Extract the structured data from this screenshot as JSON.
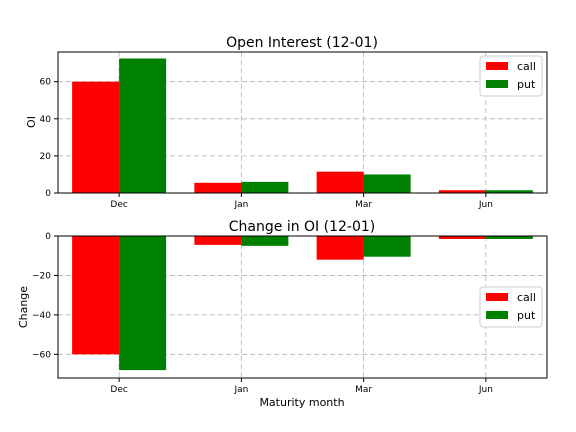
{
  "colors": {
    "call": "#ff0000",
    "put": "#008000",
    "grid": "#b0b0b0",
    "frame": "#000000"
  },
  "chart_data": [
    {
      "type": "bar",
      "title": "Open Interest (12-01)",
      "xlabel": "",
      "ylabel": "OI",
      "categories": [
        "Dec",
        "Jan",
        "Mar",
        "Jun"
      ],
      "series": [
        {
          "name": "call",
          "values": [
            60,
            5.5,
            11.5,
            1.5
          ]
        },
        {
          "name": "put",
          "values": [
            72.5,
            6,
            10,
            1.5
          ]
        }
      ],
      "ylim": [
        0,
        76
      ],
      "yticks": [
        0,
        20,
        40,
        60
      ],
      "ytick_labels": [
        "0",
        "20",
        "40",
        "60"
      ],
      "grid": true,
      "legend": "top-right"
    },
    {
      "type": "bar",
      "title": "Change in OI (12-01)",
      "xlabel": "Maturity month",
      "ylabel": "Change",
      "categories": [
        "Dec",
        "Jan",
        "Mar",
        "Jun"
      ],
      "series": [
        {
          "name": "call",
          "values": [
            -60,
            -4.5,
            -12,
            -1.5
          ]
        },
        {
          "name": "put",
          "values": [
            -68,
            -5,
            -10.5,
            -1.5
          ]
        }
      ],
      "ylim": [
        -72,
        0
      ],
      "yticks": [
        0,
        -20,
        -40,
        -60
      ],
      "ytick_labels": [
        "0",
        "−20",
        "−40",
        "−60"
      ],
      "grid": true,
      "legend": "center-right"
    }
  ]
}
